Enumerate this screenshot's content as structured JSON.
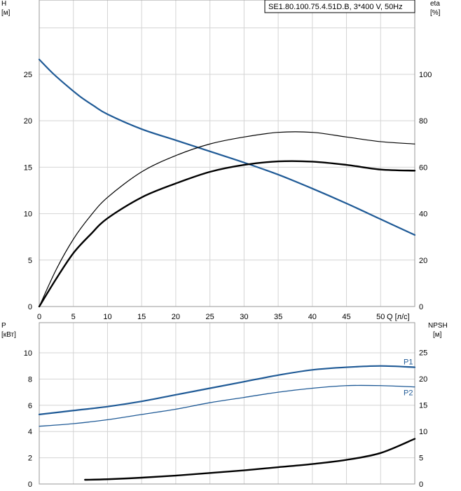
{
  "chart_data": [
    {
      "type": "line",
      "title": "SE1.80.100.75.4.51D.B, 3*400 V, 50Hz",
      "xlabel": "Q [л/с]",
      "ylabel": "H\n[м]",
      "ylabel_right": "eta\n[%]",
      "xlim": [
        0,
        55
      ],
      "ylim": [
        0,
        33
      ],
      "ylim_right": [
        0,
        132
      ],
      "x_ticks": [
        0,
        5,
        10,
        15,
        20,
        25,
        30,
        35,
        40,
        45,
        50
      ],
      "y_ticks": [
        0,
        5,
        10,
        15,
        20,
        25
      ],
      "y_ticks_right": [
        0,
        20,
        40,
        60,
        80,
        100
      ],
      "grid": true,
      "series": [
        {
          "axis": "left",
          "color": "#1f5a96",
          "x": [
            0,
            2,
            4,
            6,
            8,
            10,
            15,
            20,
            25,
            30,
            35,
            40,
            45,
            50,
            55
          ],
          "y": [
            26.6,
            25.1,
            23.8,
            22.6,
            21.6,
            20.7,
            19.1,
            17.9,
            16.7,
            15.5,
            14.2,
            12.7,
            11.1,
            9.4,
            7.7
          ]
        },
        {
          "axis": "right",
          "color": "#000000",
          "x": [
            0,
            2.5,
            5,
            7.5,
            10,
            15,
            20,
            25,
            30,
            35,
            40,
            45,
            50,
            55
          ],
          "y": [
            0,
            16,
            29,
            39,
            47,
            58,
            65,
            70,
            73,
            75,
            75,
            73,
            71,
            70
          ]
        },
        {
          "axis": "right",
          "color": "#000000",
          "x": [
            0,
            2.5,
            5,
            7.5,
            10,
            15,
            20,
            25,
            30,
            35,
            40,
            45,
            50,
            55
          ],
          "y": [
            0,
            12,
            23,
            31,
            38,
            47,
            53,
            58,
            61,
            62.5,
            62.4,
            61,
            59,
            58.5
          ]
        }
      ]
    },
    {
      "type": "line",
      "xlabel": "",
      "ylabel": "P\n[кВт]",
      "ylabel_right": "NPSH\n[м]",
      "xlim": [
        0,
        55
      ],
      "ylim": [
        0,
        12.3
      ],
      "ylim_right": [
        0,
        30.7
      ],
      "y_ticks": [
        0,
        2,
        4,
        6,
        8,
        10
      ],
      "y_ticks_right": [
        0,
        5,
        10,
        15,
        20,
        25
      ],
      "grid": true,
      "series": [
        {
          "name": "P1",
          "axis": "left",
          "color": "#1f5a96",
          "x": [
            0,
            5,
            10,
            15,
            20,
            25,
            30,
            35,
            40,
            45,
            50,
            55
          ],
          "y": [
            5.3,
            5.6,
            5.9,
            6.3,
            6.8,
            7.3,
            7.8,
            8.3,
            8.7,
            8.9,
            9.0,
            8.9
          ]
        },
        {
          "name": "P2",
          "axis": "left",
          "color": "#1f5a96",
          "x": [
            0,
            5,
            10,
            15,
            20,
            25,
            30,
            35,
            40,
            45,
            50,
            55
          ],
          "y": [
            4.4,
            4.6,
            4.9,
            5.3,
            5.7,
            6.2,
            6.6,
            7.0,
            7.3,
            7.5,
            7.5,
            7.4
          ]
        },
        {
          "axis": "right",
          "color": "#000000",
          "x": [
            6.7,
            10,
            15,
            20,
            25,
            30,
            35,
            40,
            45,
            50,
            55
          ],
          "y": [
            0.8,
            0.9,
            1.2,
            1.6,
            2.1,
            2.6,
            3.2,
            3.8,
            4.6,
            5.9,
            8.6
          ]
        }
      ]
    }
  ]
}
